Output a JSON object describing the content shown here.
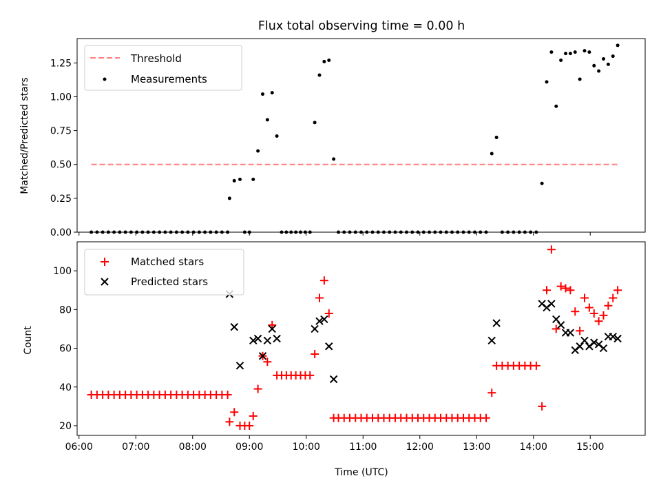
{
  "chart_data": [
    {
      "type": "scatter",
      "title": "Flux total observing time = 0.00 h",
      "xlabel": "",
      "ylabel": "Matched/Predicted stars",
      "ylim": [
        0,
        1.43
      ],
      "xlim": [
        "05:58",
        "15:58"
      ],
      "yticks": [
        0.0,
        0.25,
        0.5,
        0.75,
        1.0,
        1.25
      ],
      "ytick_labels": [
        "0.00",
        "0.25",
        "0.50",
        "0.75",
        "1.00",
        "1.25"
      ],
      "legend_placement": "top-left",
      "threshold": {
        "name": "Threshold",
        "value": 0.5,
        "x_range": [
          "06:13",
          "15:29"
        ],
        "color": "#ff7f7f"
      },
      "series": [
        {
          "name": "Measurements",
          "color": "#000000",
          "points": [
            [
              "06:13",
              0
            ],
            [
              "06:19",
              0
            ],
            [
              "06:25",
              0
            ],
            [
              "06:31",
              0
            ],
            [
              "06:37",
              0
            ],
            [
              "06:43",
              0
            ],
            [
              "06:49",
              0
            ],
            [
              "06:55",
              0
            ],
            [
              "07:01",
              0
            ],
            [
              "07:07",
              0
            ],
            [
              "07:13",
              0
            ],
            [
              "07:19",
              0
            ],
            [
              "07:25",
              0
            ],
            [
              "07:31",
              0
            ],
            [
              "07:37",
              0
            ],
            [
              "07:43",
              0
            ],
            [
              "07:49",
              0
            ],
            [
              "07:55",
              0
            ],
            [
              "08:01",
              0
            ],
            [
              "08:07",
              0
            ],
            [
              "08:13",
              0
            ],
            [
              "08:19",
              0
            ],
            [
              "08:25",
              0
            ],
            [
              "08:31",
              0
            ],
            [
              "08:37",
              0
            ],
            [
              "08:39",
              0.25
            ],
            [
              "08:44",
              0.38
            ],
            [
              "08:50",
              0.39
            ],
            [
              "08:55",
              0
            ],
            [
              "09:00",
              0
            ],
            [
              "09:04",
              0.39
            ],
            [
              "09:09",
              0.6
            ],
            [
              "09:14",
              1.02
            ],
            [
              "09:19",
              0.83
            ],
            [
              "09:24",
              1.03
            ],
            [
              "09:29",
              0.71
            ],
            [
              "09:34",
              0
            ],
            [
              "09:39",
              0
            ],
            [
              "09:44",
              0
            ],
            [
              "09:49",
              0
            ],
            [
              "09:54",
              0
            ],
            [
              "09:59",
              0
            ],
            [
              "10:04",
              0
            ],
            [
              "10:09",
              0.81
            ],
            [
              "10:14",
              1.16
            ],
            [
              "10:19",
              1.26
            ],
            [
              "10:24",
              1.27
            ],
            [
              "10:29",
              0.54
            ],
            [
              "10:34",
              0
            ],
            [
              "10:40",
              0
            ],
            [
              "10:46",
              0
            ],
            [
              "10:52",
              0
            ],
            [
              "10:58",
              0
            ],
            [
              "11:04",
              0
            ],
            [
              "11:10",
              0
            ],
            [
              "11:16",
              0
            ],
            [
              "11:22",
              0
            ],
            [
              "11:28",
              0
            ],
            [
              "11:34",
              0
            ],
            [
              "11:40",
              0
            ],
            [
              "11:46",
              0
            ],
            [
              "11:52",
              0
            ],
            [
              "11:58",
              0
            ],
            [
              "12:04",
              0
            ],
            [
              "12:10",
              0
            ],
            [
              "12:16",
              0
            ],
            [
              "12:22",
              0
            ],
            [
              "12:28",
              0
            ],
            [
              "12:34",
              0
            ],
            [
              "12:40",
              0
            ],
            [
              "12:46",
              0
            ],
            [
              "12:52",
              0
            ],
            [
              "12:58",
              0
            ],
            [
              "13:04",
              0
            ],
            [
              "13:10",
              0
            ],
            [
              "13:16",
              0.58
            ],
            [
              "13:21",
              0.7
            ],
            [
              "13:27",
              0
            ],
            [
              "13:33",
              0
            ],
            [
              "13:39",
              0
            ],
            [
              "13:45",
              0
            ],
            [
              "13:51",
              0
            ],
            [
              "13:57",
              0
            ],
            [
              "14:03",
              0
            ],
            [
              "14:09",
              0.36
            ],
            [
              "14:14",
              1.11
            ],
            [
              "14:19",
              1.33
            ],
            [
              "14:24",
              0.93
            ],
            [
              "14:29",
              1.27
            ],
            [
              "14:34",
              1.32
            ],
            [
              "14:39",
              1.32
            ],
            [
              "14:44",
              1.33
            ],
            [
              "14:49",
              1.13
            ],
            [
              "14:54",
              1.34
            ],
            [
              "14:59",
              1.33
            ],
            [
              "15:04",
              1.23
            ],
            [
              "15:09",
              1.19
            ],
            [
              "15:14",
              1.28
            ],
            [
              "15:19",
              1.24
            ],
            [
              "15:24",
              1.3
            ],
            [
              "15:29",
              1.38
            ]
          ]
        }
      ]
    },
    {
      "type": "scatter",
      "title": "",
      "xlabel": "Time (UTC)",
      "ylabel": "Count",
      "ylim": [
        15,
        115
      ],
      "xlim": [
        "05:58",
        "15:58"
      ],
      "yticks": [
        20,
        40,
        60,
        80,
        100
      ],
      "xtick_labels": [
        "06:00",
        "07:00",
        "08:00",
        "09:00",
        "10:00",
        "11:00",
        "12:00",
        "13:00",
        "14:00",
        "15:00"
      ],
      "legend_placement": "top-left",
      "series": [
        {
          "name": "Matched stars",
          "marker": "plus",
          "color": "#ff0000",
          "points": [
            [
              "06:13",
              36
            ],
            [
              "06:19",
              36
            ],
            [
              "06:25",
              36
            ],
            [
              "06:31",
              36
            ],
            [
              "06:37",
              36
            ],
            [
              "06:43",
              36
            ],
            [
              "06:49",
              36
            ],
            [
              "06:55",
              36
            ],
            [
              "07:01",
              36
            ],
            [
              "07:07",
              36
            ],
            [
              "07:13",
              36
            ],
            [
              "07:19",
              36
            ],
            [
              "07:25",
              36
            ],
            [
              "07:31",
              36
            ],
            [
              "07:37",
              36
            ],
            [
              "07:43",
              36
            ],
            [
              "07:49",
              36
            ],
            [
              "07:55",
              36
            ],
            [
              "08:01",
              36
            ],
            [
              "08:07",
              36
            ],
            [
              "08:13",
              36
            ],
            [
              "08:19",
              36
            ],
            [
              "08:25",
              36
            ],
            [
              "08:31",
              36
            ],
            [
              "08:37",
              36
            ],
            [
              "08:39",
              22
            ],
            [
              "08:44",
              27
            ],
            [
              "08:50",
              20
            ],
            [
              "08:55",
              20
            ],
            [
              "09:00",
              20
            ],
            [
              "09:04",
              25
            ],
            [
              "09:09",
              39
            ],
            [
              "09:14",
              56
            ],
            [
              "09:19",
              53
            ],
            [
              "09:24",
              72
            ],
            [
              "09:29",
              46
            ],
            [
              "09:34",
              46
            ],
            [
              "09:39",
              46
            ],
            [
              "09:44",
              46
            ],
            [
              "09:49",
              46
            ],
            [
              "09:54",
              46
            ],
            [
              "09:59",
              46
            ],
            [
              "10:04",
              46
            ],
            [
              "10:09",
              57
            ],
            [
              "10:14",
              86
            ],
            [
              "10:19",
              95
            ],
            [
              "10:24",
              78
            ],
            [
              "10:29",
              24
            ],
            [
              "10:34",
              24
            ],
            [
              "10:40",
              24
            ],
            [
              "10:46",
              24
            ],
            [
              "10:52",
              24
            ],
            [
              "10:58",
              24
            ],
            [
              "11:04",
              24
            ],
            [
              "11:10",
              24
            ],
            [
              "11:16",
              24
            ],
            [
              "11:22",
              24
            ],
            [
              "11:28",
              24
            ],
            [
              "11:34",
              24
            ],
            [
              "11:40",
              24
            ],
            [
              "11:46",
              24
            ],
            [
              "11:52",
              24
            ],
            [
              "11:58",
              24
            ],
            [
              "12:04",
              24
            ],
            [
              "12:10",
              24
            ],
            [
              "12:16",
              24
            ],
            [
              "12:22",
              24
            ],
            [
              "12:28",
              24
            ],
            [
              "12:34",
              24
            ],
            [
              "12:40",
              24
            ],
            [
              "12:46",
              24
            ],
            [
              "12:52",
              24
            ],
            [
              "12:58",
              24
            ],
            [
              "13:04",
              24
            ],
            [
              "13:10",
              24
            ],
            [
              "13:16",
              37
            ],
            [
              "13:21",
              51
            ],
            [
              "13:27",
              51
            ],
            [
              "13:33",
              51
            ],
            [
              "13:39",
              51
            ],
            [
              "13:45",
              51
            ],
            [
              "13:51",
              51
            ],
            [
              "13:57",
              51
            ],
            [
              "14:03",
              51
            ],
            [
              "14:09",
              30
            ],
            [
              "14:14",
              90
            ],
            [
              "14:19",
              111
            ],
            [
              "14:24",
              70
            ],
            [
              "14:29",
              92
            ],
            [
              "14:34",
              91
            ],
            [
              "14:39",
              90
            ],
            [
              "14:44",
              79
            ],
            [
              "14:49",
              69
            ],
            [
              "14:54",
              86
            ],
            [
              "14:59",
              81
            ],
            [
              "15:04",
              78
            ],
            [
              "15:09",
              74
            ],
            [
              "15:14",
              77
            ],
            [
              "15:19",
              82
            ],
            [
              "15:24",
              86
            ],
            [
              "15:29",
              90
            ]
          ]
        },
        {
          "name": "Predicted stars",
          "marker": "x",
          "color": "#000000",
          "points": [
            [
              "08:39",
              88
            ],
            [
              "08:44",
              71
            ],
            [
              "08:50",
              51
            ],
            [
              "09:04",
              64
            ],
            [
              "09:09",
              65
            ],
            [
              "09:14",
              56
            ],
            [
              "09:19",
              64
            ],
            [
              "09:24",
              70
            ],
            [
              "09:29",
              65
            ],
            [
              "10:09",
              70
            ],
            [
              "10:14",
              74
            ],
            [
              "10:19",
              75
            ],
            [
              "10:24",
              61
            ],
            [
              "10:29",
              44
            ],
            [
              "13:16",
              64
            ],
            [
              "13:21",
              73
            ],
            [
              "14:09",
              83
            ],
            [
              "14:14",
              81
            ],
            [
              "14:19",
              83
            ],
            [
              "14:24",
              75
            ],
            [
              "14:29",
              72
            ],
            [
              "14:34",
              68
            ],
            [
              "14:39",
              68
            ],
            [
              "14:44",
              59
            ],
            [
              "14:49",
              61
            ],
            [
              "14:54",
              64
            ],
            [
              "14:59",
              61
            ],
            [
              "15:04",
              63
            ],
            [
              "15:09",
              62
            ],
            [
              "15:14",
              60
            ],
            [
              "15:19",
              66
            ],
            [
              "15:24",
              66
            ],
            [
              "15:29",
              65
            ]
          ]
        }
      ]
    }
  ]
}
